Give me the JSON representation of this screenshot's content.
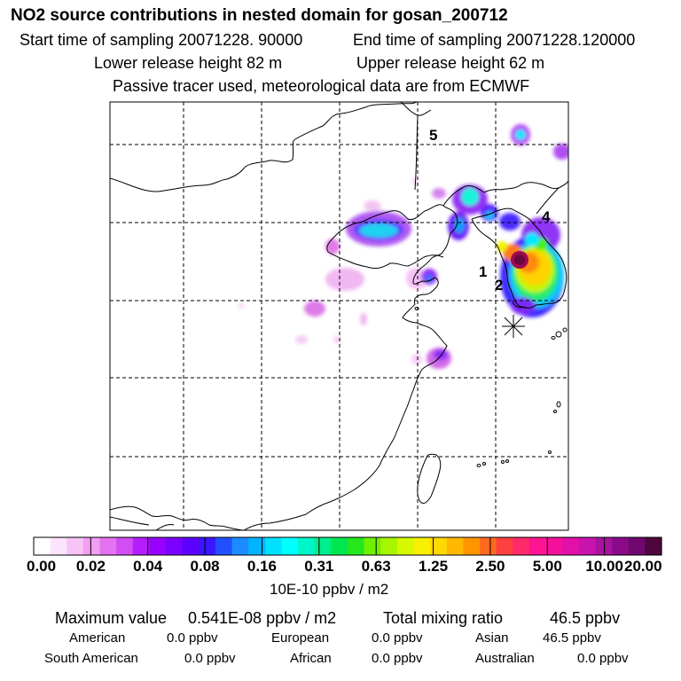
{
  "header": {
    "title": "NO2 source contributions in nested domain for gosan_200712",
    "start_label": "Start time of sampling 20071228. 90000",
    "end_label": "End time of sampling 20071228.120000",
    "lower_label": "Lower release height   82 m",
    "upper_label": "Upper release height   62 m",
    "tracer_label": "Passive tracer used, meteorological data are from ECMWF"
  },
  "map": {
    "region_labels": [
      "1",
      "2",
      "4",
      "5"
    ],
    "receptor_marker": "asterisk"
  },
  "colorbar": {
    "ticks": [
      "0.00",
      "0.02",
      "0.04",
      "0.08",
      "0.16",
      "0.31",
      "0.63",
      "1.25",
      "2.50",
      "5.00",
      "10.00",
      "20.00"
    ],
    "unit": "10E-10 ppbv / m2",
    "colors": [
      "#ffffff",
      "#fde4fd",
      "#f8c4f8",
      "#f29ef2",
      "#e572f0",
      "#d24df5",
      "#b51dfb",
      "#9800ff",
      "#7a00ff",
      "#5c00ff",
      "#3a15ff",
      "#2050ff",
      "#1a8cff",
      "#00b4ff",
      "#00e0ff",
      "#00ffff",
      "#00f5c8",
      "#00ee8c",
      "#00e650",
      "#24e81c",
      "#6ef000",
      "#a8f500",
      "#d6f800",
      "#f8f000",
      "#ffd800",
      "#ffb800",
      "#ff9600",
      "#ff6a1e",
      "#ff4040",
      "#ff2a6a",
      "#ff1493",
      "#f5109c",
      "#e010a8",
      "#c813ac",
      "#a812a0",
      "#8a0a8a",
      "#700870",
      "#4f063e"
    ]
  },
  "summary": {
    "max_label": "Maximum value",
    "max_value": "0.541E-08 ppbv / m2",
    "total_label": "Total mixing ratio",
    "total_value": "46.5 ppbv",
    "regions": [
      {
        "name": "American",
        "value": "0.0 ppbv"
      },
      {
        "name": "European",
        "value": "0.0 ppbv"
      },
      {
        "name": "Asian",
        "value": "46.5 ppbv"
      },
      {
        "name": "South American",
        "value": "0.0 ppbv"
      },
      {
        "name": "African",
        "value": "0.0 ppbv"
      },
      {
        "name": "Australian",
        "value": "0.0 ppbv"
      }
    ]
  }
}
